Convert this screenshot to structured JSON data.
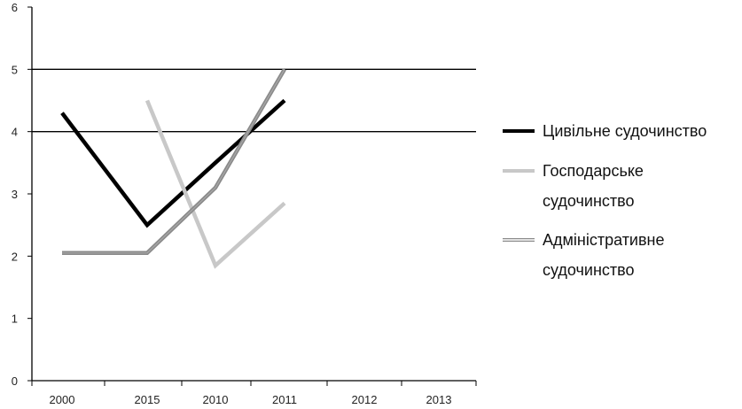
{
  "chart_data": {
    "type": "line",
    "categories": [
      "2000",
      "2015",
      "2010",
      "2011",
      "2012",
      "2013"
    ],
    "ylim": [
      0,
      6
    ],
    "yticks": [
      "0",
      "1",
      "2",
      "3",
      "4",
      "5",
      "6"
    ],
    "grid": "horizontal lines at 4 and 5 only",
    "legend_position": "right",
    "series": [
      {
        "name": "Цивільне судочинство",
        "legend_lines": [
          "Цивільне судочинство"
        ],
        "color": "#000000",
        "style": "solid",
        "values": [
          4.3,
          2.5,
          3.5,
          4.5,
          null,
          null
        ]
      },
      {
        "name": "Господарське судочинство",
        "legend_lines": [
          "Господарське",
          "судочинство"
        ],
        "color": "#c8c8c8",
        "style": "solid",
        "values": [
          null,
          4.5,
          1.85,
          2.85,
          null,
          null
        ]
      },
      {
        "name": "Адміністративне судочинство",
        "legend_lines": [
          "Адміністративне",
          "судочинство"
        ],
        "color": "#8a8a8a",
        "style": "double",
        "values": [
          2.05,
          2.05,
          3.1,
          5.0,
          null,
          null
        ]
      }
    ]
  }
}
